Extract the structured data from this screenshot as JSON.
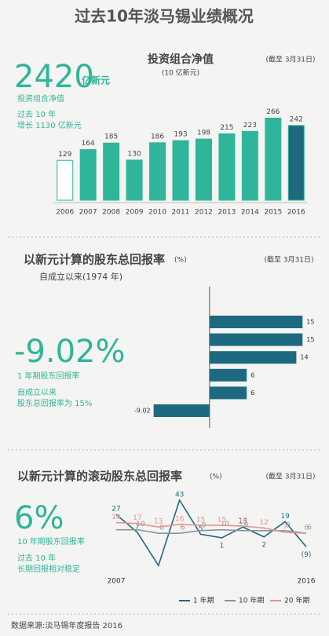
{
  "header": {
    "title": "过去10年淡马锡业绩概况"
  },
  "chart_data": [
    {
      "type": "bar",
      "title": "投资组合净值",
      "subtitle": "(10 亿新元)",
      "date_note": "(截至 3月31日)",
      "headline": "2420",
      "headline_unit": "亿新元",
      "headline_label": "投资组合净值",
      "notes": [
        "过去 10 年",
        "增长 1130 亿新元"
      ],
      "categories": [
        "2006",
        "2007",
        "2008",
        "2009",
        "2010",
        "2011",
        "2012",
        "2013",
        "2014",
        "2015",
        "2016"
      ],
      "values": [
        129,
        164,
        185,
        130,
        186,
        193,
        198,
        215,
        223,
        266,
        242
      ],
      "colors": [
        "#ffffff",
        "#2fb59a",
        "#2fb59a",
        "#2fb59a",
        "#2fb59a",
        "#2fb59a",
        "#2fb59a",
        "#2fb59a",
        "#2fb59a",
        "#2fb59a",
        "#1d6a80"
      ],
      "stroke": "#2fb59a",
      "ylim": [
        0,
        300
      ]
    },
    {
      "type": "hbar",
      "title": "以新元计算的股东总回报率",
      "unit_note": "(%)",
      "date_note": "(截至 3月31日)",
      "subtitle": "自成立以来(1974 年)",
      "headline": "-9.02%",
      "headline_label": "1 年期股东回报率",
      "notes": [
        "自成立以来",
        "股东总回报率为 15%"
      ],
      "categories": [
        null,
        null,
        null,
        null,
        null,
        null
      ],
      "values": [
        15,
        15,
        14,
        6,
        6,
        -9.02
      ],
      "color": "#1d6a80",
      "xlim": [
        -11,
        18
      ]
    },
    {
      "type": "line",
      "title": "以新元计算的滚动股东总回报率",
      "unit_note": "(%)",
      "date_note": "(截至 3月31日)",
      "headline": "6%",
      "headline_label": "10 年期股东回报率",
      "notes": [
        "过去 10 年",
        "长期回报相对稳定"
      ],
      "categories": [
        "2007",
        null,
        null,
        null,
        null,
        null,
        null,
        null,
        null,
        "2016"
      ],
      "series": [
        {
          "name": "1 年期",
          "color": "#1d6a80",
          "values": [
            27,
            7,
            -30,
            43,
            5,
            1,
            13,
            2,
            19,
            -9
          ],
          "value_labels": [
            "27",
            "7",
            null,
            "43",
            "5",
            "1",
            "13",
            "2",
            "19",
            "(9)"
          ]
        },
        {
          "name": "10 年期",
          "color": "#8a9499",
          "values": [
            10,
            10,
            6,
            6,
            9,
            10,
            9,
            9,
            9,
            6
          ],
          "value_labels": [
            null,
            "10",
            "6",
            "6",
            "9",
            "10",
            "9",
            null,
            "9",
            "6"
          ]
        },
        {
          "name": "20 年期",
          "color": "#e8938c",
          "values": [
            18,
            17,
            13,
            16,
            15,
            15,
            14,
            12,
            7,
            6
          ],
          "value_labels": [
            "18",
            "17",
            "13",
            "16",
            "15",
            "15",
            "14",
            "12",
            "7",
            "6"
          ]
        }
      ],
      "ylim": [
        -35,
        50
      ]
    }
  ],
  "footer": {
    "source": "数据来源:淡马锡年度报告 2016"
  }
}
